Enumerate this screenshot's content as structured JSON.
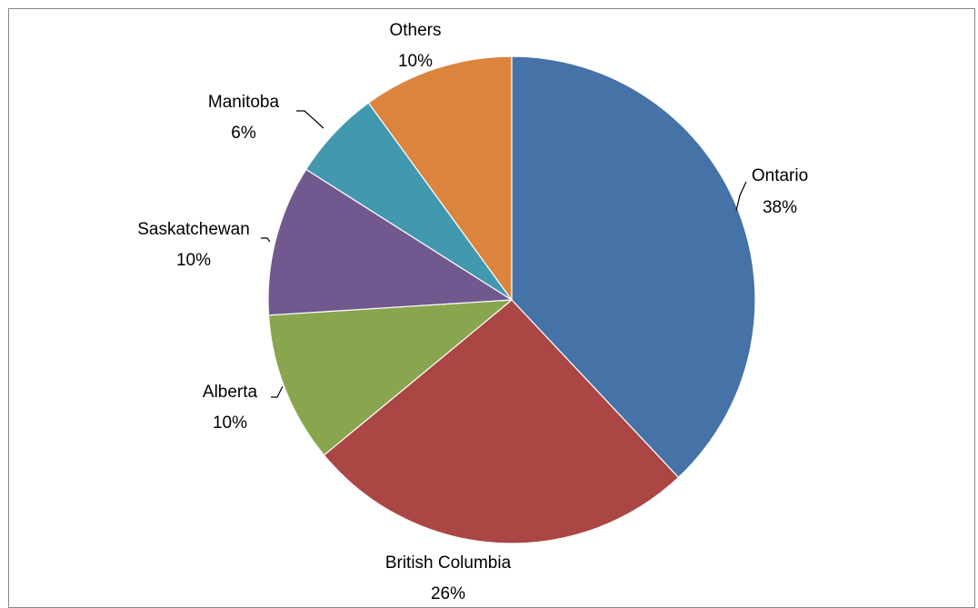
{
  "chart_data": {
    "type": "pie",
    "title": "",
    "slices": [
      {
        "name": "Ontario",
        "value": 38,
        "label": "38%",
        "color": "#4572A7"
      },
      {
        "name": "British Columbia",
        "value": 26,
        "label": "26%",
        "color": "#AA4643"
      },
      {
        "name": "Alberta",
        "value": 10,
        "label": "10%",
        "color": "#89A54E"
      },
      {
        "name": "Saskatchewan",
        "value": 10,
        "label": "10%",
        "color": "#71588F"
      },
      {
        "name": "Manitoba",
        "value": 6,
        "label": "6%",
        "color": "#4198AF"
      },
      {
        "name": "Others",
        "value": 10,
        "label": "10%",
        "color": "#DB843D"
      }
    ],
    "start_angle": "top",
    "direction": "clockwise",
    "legend": "none",
    "data_labels": "category name and percentage"
  }
}
